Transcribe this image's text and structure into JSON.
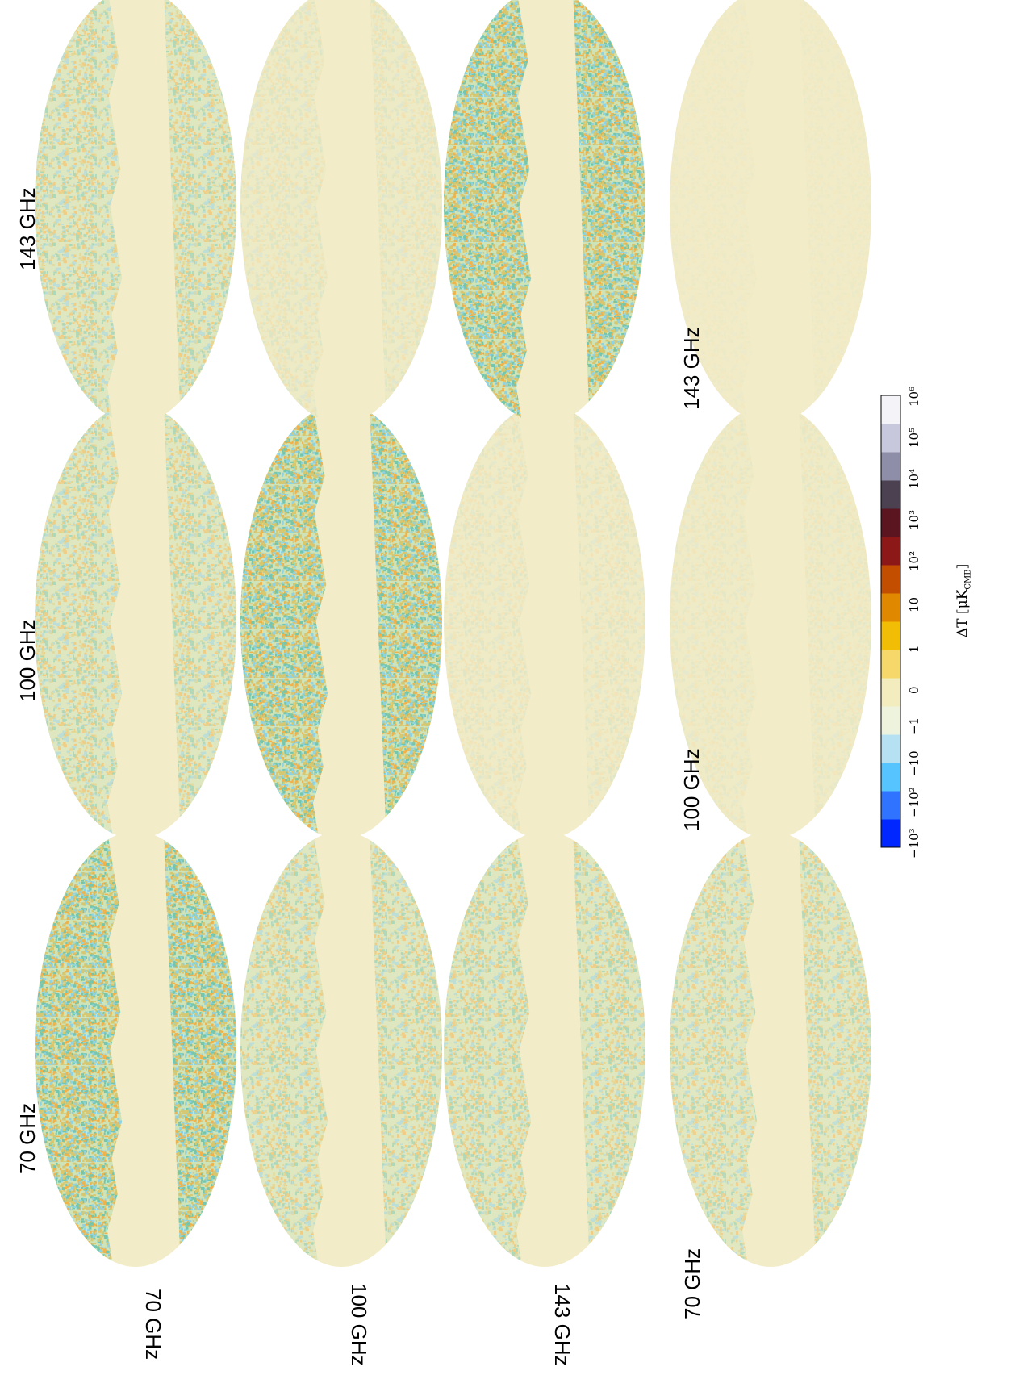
{
  "column_labels": [
    "70 GHz",
    "100 GHz",
    "143 GHz"
  ],
  "row_labels": [
    "70 GHz",
    "100 GHz",
    "143 GHz"
  ],
  "bottom_row_labels": [
    "70 GHz",
    "100 GHz",
    "143 GHz"
  ],
  "colorbar": {
    "ticks": [
      "−10³",
      "−10²",
      "−10",
      "−1",
      "0",
      "1",
      "10",
      "10²",
      "10³",
      "10⁴",
      "10⁵",
      "10⁶"
    ],
    "unit": "ΔT [μK",
    "unit_sub": "CMB",
    "unit_close": "]",
    "colors": [
      "#0027ff",
      "#2f73ff",
      "#56c4ff",
      "#b6e1f2",
      "#eef3de",
      "#f3ecbe",
      "#f5d76a",
      "#f2bd05",
      "#e08900",
      "#c34e00",
      "#8d1818",
      "#5a1520",
      "#4b4150",
      "#8f8ea8",
      "#c8c8dc",
      "#f4f4f8"
    ]
  },
  "map_style": {
    "background": "#f3ecc9",
    "noise_colors": [
      "#8fd2e3",
      "#f0b24a",
      "#74c7ad",
      "#d9c76d"
    ]
  }
}
